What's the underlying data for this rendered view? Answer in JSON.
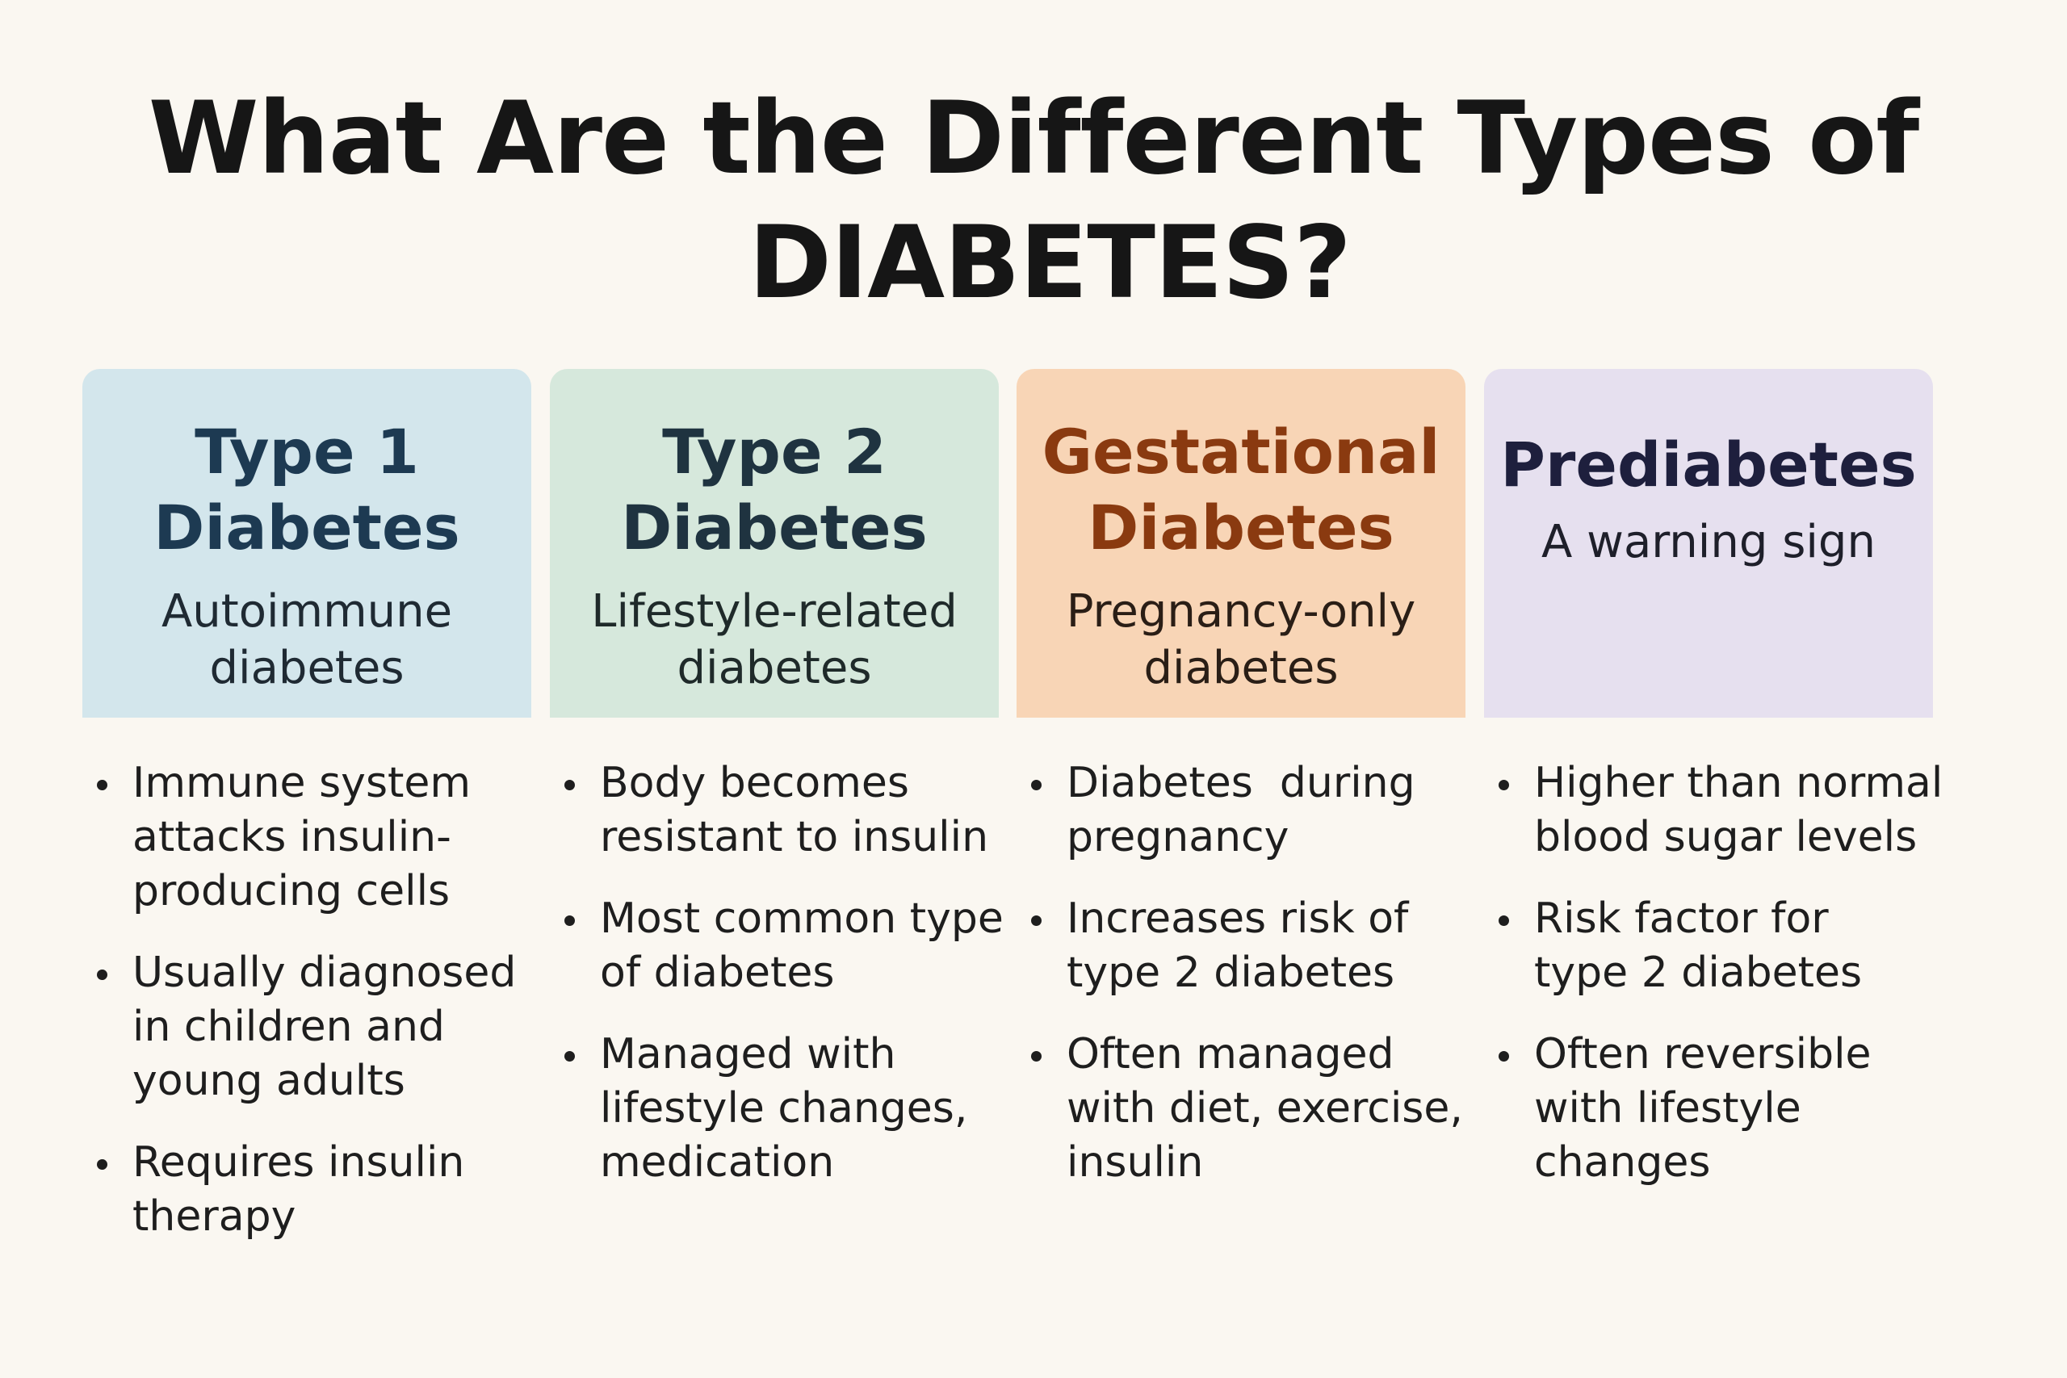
{
  "title": {
    "line1": "What Are the Different Types of",
    "line2": "DIABETES?"
  },
  "colors": {
    "background": "#faf7f1",
    "type1_card": "#d3e6ec",
    "type1_title": "#1d3a52",
    "type2_card": "#d6e8dc",
    "type2_title": "#1f3340",
    "gestational_card": "#f8d5b6",
    "gestational_title": "#8a3a10",
    "prediabetes_card": "#e6e0ef",
    "prediabetes_title": "#1e1f3d"
  },
  "columns": [
    {
      "id": "type1",
      "title_lines": [
        "Type 1",
        "Diabetes"
      ],
      "subtitle_lines": [
        "Autoimmune",
        "diabetes"
      ],
      "bullets": [
        [
          "Immune system",
          "attacks insulin-",
          "producing cells"
        ],
        [
          "Usually diagnosed",
          "in children and",
          "young adults"
        ],
        [
          "Requires insulin",
          "therapy"
        ]
      ]
    },
    {
      "id": "type2",
      "title_lines": [
        "Type 2",
        "Diabetes"
      ],
      "subtitle_lines": [
        "Lifestyle-related",
        "diabetes"
      ],
      "bullets": [
        [
          "Body becomes",
          "resistant to insulin"
        ],
        [
          "Most common type",
          "of diabetes"
        ],
        [
          "Managed with",
          "lifestyle changes,",
          "medication"
        ]
      ]
    },
    {
      "id": "gestational",
      "title_lines": [
        "Gestational",
        "Diabetes"
      ],
      "subtitle_lines": [
        "Pregnancy-only",
        "diabetes"
      ],
      "bullets": [
        [
          "Diabetes  during",
          "pregnancy"
        ],
        [
          "Increases risk of",
          "type 2 diabetes"
        ],
        [
          "Often managed",
          "with diet, exercise,",
          "insulin"
        ]
      ]
    },
    {
      "id": "prediabetes",
      "title_lines": [
        "Prediabetes"
      ],
      "subtitle_lines": [
        "A warning sign"
      ],
      "bullets": [
        [
          "Higher than normal",
          "blood sugar levels"
        ],
        [
          "Risk factor for",
          "type 2 diabetes"
        ],
        [
          "Often reversible",
          "with lifestyle",
          "changes"
        ]
      ]
    }
  ]
}
